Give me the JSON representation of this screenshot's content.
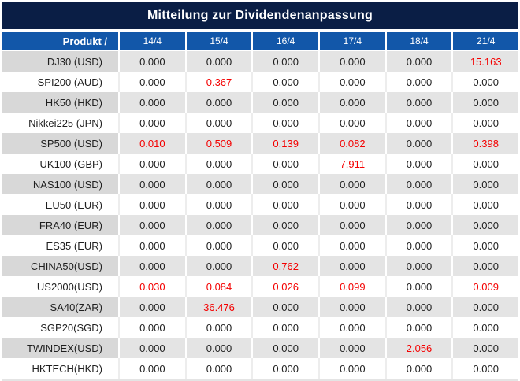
{
  "title": "Mitteilung zur Dividendenanpassung",
  "colors": {
    "title_bar": "#0a1e45",
    "header_row": "#1257a9",
    "striped_row_product": "#d8d8d8",
    "striped_row_values": "#e4e4e4",
    "plain_row": "#ffffff",
    "value_text": "#1f1f1f",
    "highlight_red": "#f40000",
    "header_text": "#ffffff"
  },
  "table": {
    "product_header": "Produkt /",
    "date_columns": [
      "14/4",
      "15/4",
      "16/4",
      "17/4",
      "18/4",
      "21/4"
    ],
    "rows": [
      {
        "product": "DJ30 (USD)",
        "values": [
          "0.000",
          "0.000",
          "0.000",
          "0.000",
          "0.000",
          "15.163"
        ],
        "red_cols": [
          5
        ]
      },
      {
        "product": "SPI200 (AUD)",
        "values": [
          "0.000",
          "0.367",
          "0.000",
          "0.000",
          "0.000",
          "0.000"
        ],
        "red_cols": [
          1
        ]
      },
      {
        "product": "HK50 (HKD)",
        "values": [
          "0.000",
          "0.000",
          "0.000",
          "0.000",
          "0.000",
          "0.000"
        ],
        "red_cols": []
      },
      {
        "product": "Nikkei225 (JPN)",
        "values": [
          "0.000",
          "0.000",
          "0.000",
          "0.000",
          "0.000",
          "0.000"
        ],
        "red_cols": []
      },
      {
        "product": "SP500 (USD)",
        "values": [
          "0.010",
          "0.509",
          "0.139",
          "0.082",
          "0.000",
          "0.398"
        ],
        "red_cols": [
          0,
          1,
          2,
          3,
          5
        ]
      },
      {
        "product": "UK100 (GBP)",
        "values": [
          "0.000",
          "0.000",
          "0.000",
          "7.911",
          "0.000",
          "0.000"
        ],
        "red_cols": [
          3
        ]
      },
      {
        "product": "NAS100 (USD)",
        "values": [
          "0.000",
          "0.000",
          "0.000",
          "0.000",
          "0.000",
          "0.000"
        ],
        "red_cols": []
      },
      {
        "product": "EU50 (EUR)",
        "values": [
          "0.000",
          "0.000",
          "0.000",
          "0.000",
          "0.000",
          "0.000"
        ],
        "red_cols": []
      },
      {
        "product": "FRA40 (EUR)",
        "values": [
          "0.000",
          "0.000",
          "0.000",
          "0.000",
          "0.000",
          "0.000"
        ],
        "red_cols": []
      },
      {
        "product": "ES35 (EUR)",
        "values": [
          "0.000",
          "0.000",
          "0.000",
          "0.000",
          "0.000",
          "0.000"
        ],
        "red_cols": []
      },
      {
        "product": "CHINA50(USD)",
        "values": [
          "0.000",
          "0.000",
          "0.762",
          "0.000",
          "0.000",
          "0.000"
        ],
        "red_cols": [
          2
        ]
      },
      {
        "product": "US2000(USD)",
        "values": [
          "0.030",
          "0.084",
          "0.026",
          "0.099",
          "0.000",
          "0.009"
        ],
        "red_cols": [
          0,
          1,
          2,
          3,
          5
        ]
      },
      {
        "product": "SA40(ZAR)",
        "values": [
          "0.000",
          "36.476",
          "0.000",
          "0.000",
          "0.000",
          "0.000"
        ],
        "red_cols": [
          1
        ]
      },
      {
        "product": "SGP20(SGD)",
        "values": [
          "0.000",
          "0.000",
          "0.000",
          "0.000",
          "0.000",
          "0.000"
        ],
        "red_cols": []
      },
      {
        "product": "TWINDEX(USD)",
        "values": [
          "0.000",
          "0.000",
          "0.000",
          "0.000",
          "2.056",
          "0.000"
        ],
        "red_cols": [
          4
        ]
      },
      {
        "product": "HKTECH(HKD)",
        "values": [
          "0.000",
          "0.000",
          "0.000",
          "0.000",
          "0.000",
          "0.000"
        ],
        "red_cols": []
      }
    ]
  }
}
